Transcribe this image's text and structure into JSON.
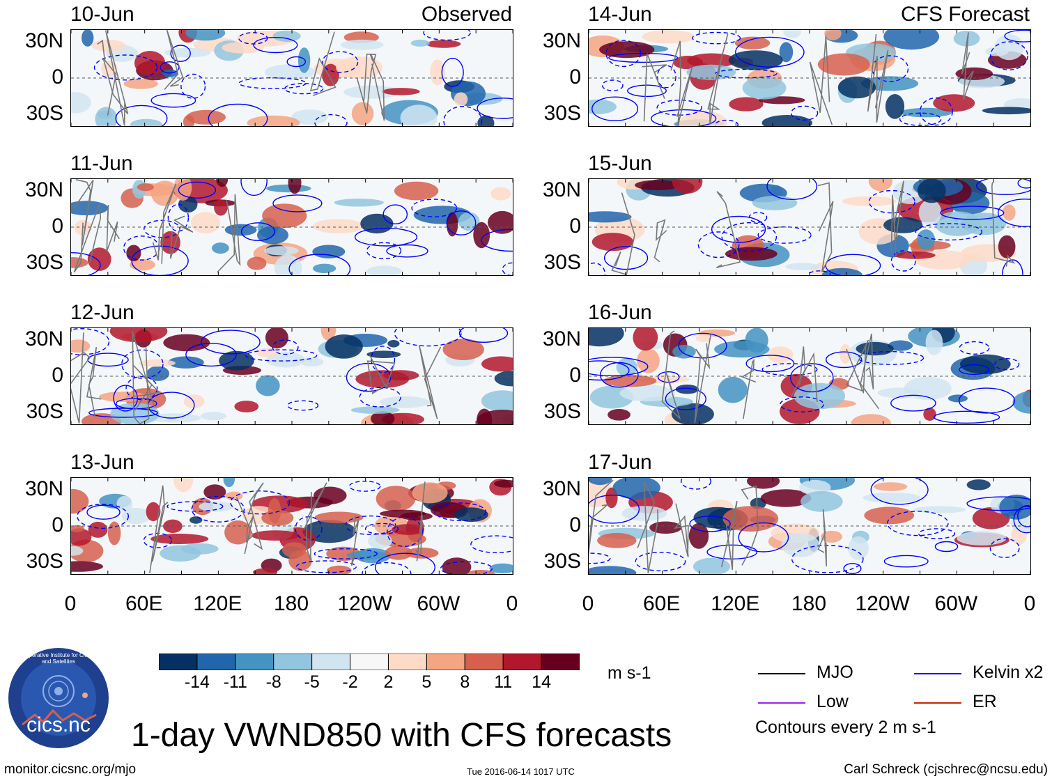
{
  "chart_data": {
    "type": "heatmap",
    "title": "1-day VWND850 with CFS forecasts",
    "variable": "VWND850",
    "units": "m s-1",
    "columns": [
      {
        "label": "Observed",
        "dates": [
          "10-Jun",
          "11-Jun",
          "12-Jun",
          "13-Jun"
        ]
      },
      {
        "label": "CFS Forecast",
        "dates": [
          "14-Jun",
          "15-Jun",
          "16-Jun",
          "17-Jun"
        ]
      }
    ],
    "x_ticks": [
      "0",
      "60E",
      "120E",
      "180",
      "120W",
      "60W",
      "0"
    ],
    "y_ticks": [
      "30N",
      "0",
      "30S"
    ],
    "ylim_deg": [
      -40,
      40
    ],
    "colorbar": {
      "ticks": [
        "-14",
        "-11",
        "-8",
        "-5",
        "-2",
        "2",
        "5",
        "8",
        "11",
        "14"
      ],
      "colors": [
        "#053061",
        "#2166ac",
        "#4393c3",
        "#92c5de",
        "#d1e5f0",
        "#f7f7f7",
        "#fddbc7",
        "#f4a582",
        "#d6604d",
        "#b2182b",
        "#67001f"
      ]
    },
    "legend": [
      {
        "label": "MJO",
        "color": "#000000"
      },
      {
        "label": "Kelvin x2",
        "color": "#0000ff"
      },
      {
        "label": "Low",
        "color": "#a020f0"
      },
      {
        "label": "ER",
        "color": "#cc2200"
      }
    ],
    "contour_note": "Contours every 2 m s-1"
  },
  "footer": {
    "site": "monitor.cicsnc.org/mjo",
    "timestamp": "Tue 2016-06-14 1017 UTC",
    "author": "Carl Schreck (cjschrec@ncsu.edu)"
  },
  "logo": {
    "ring_text": "Cooperative Institute for Climate and Satellites",
    "name": "cics.nc"
  }
}
